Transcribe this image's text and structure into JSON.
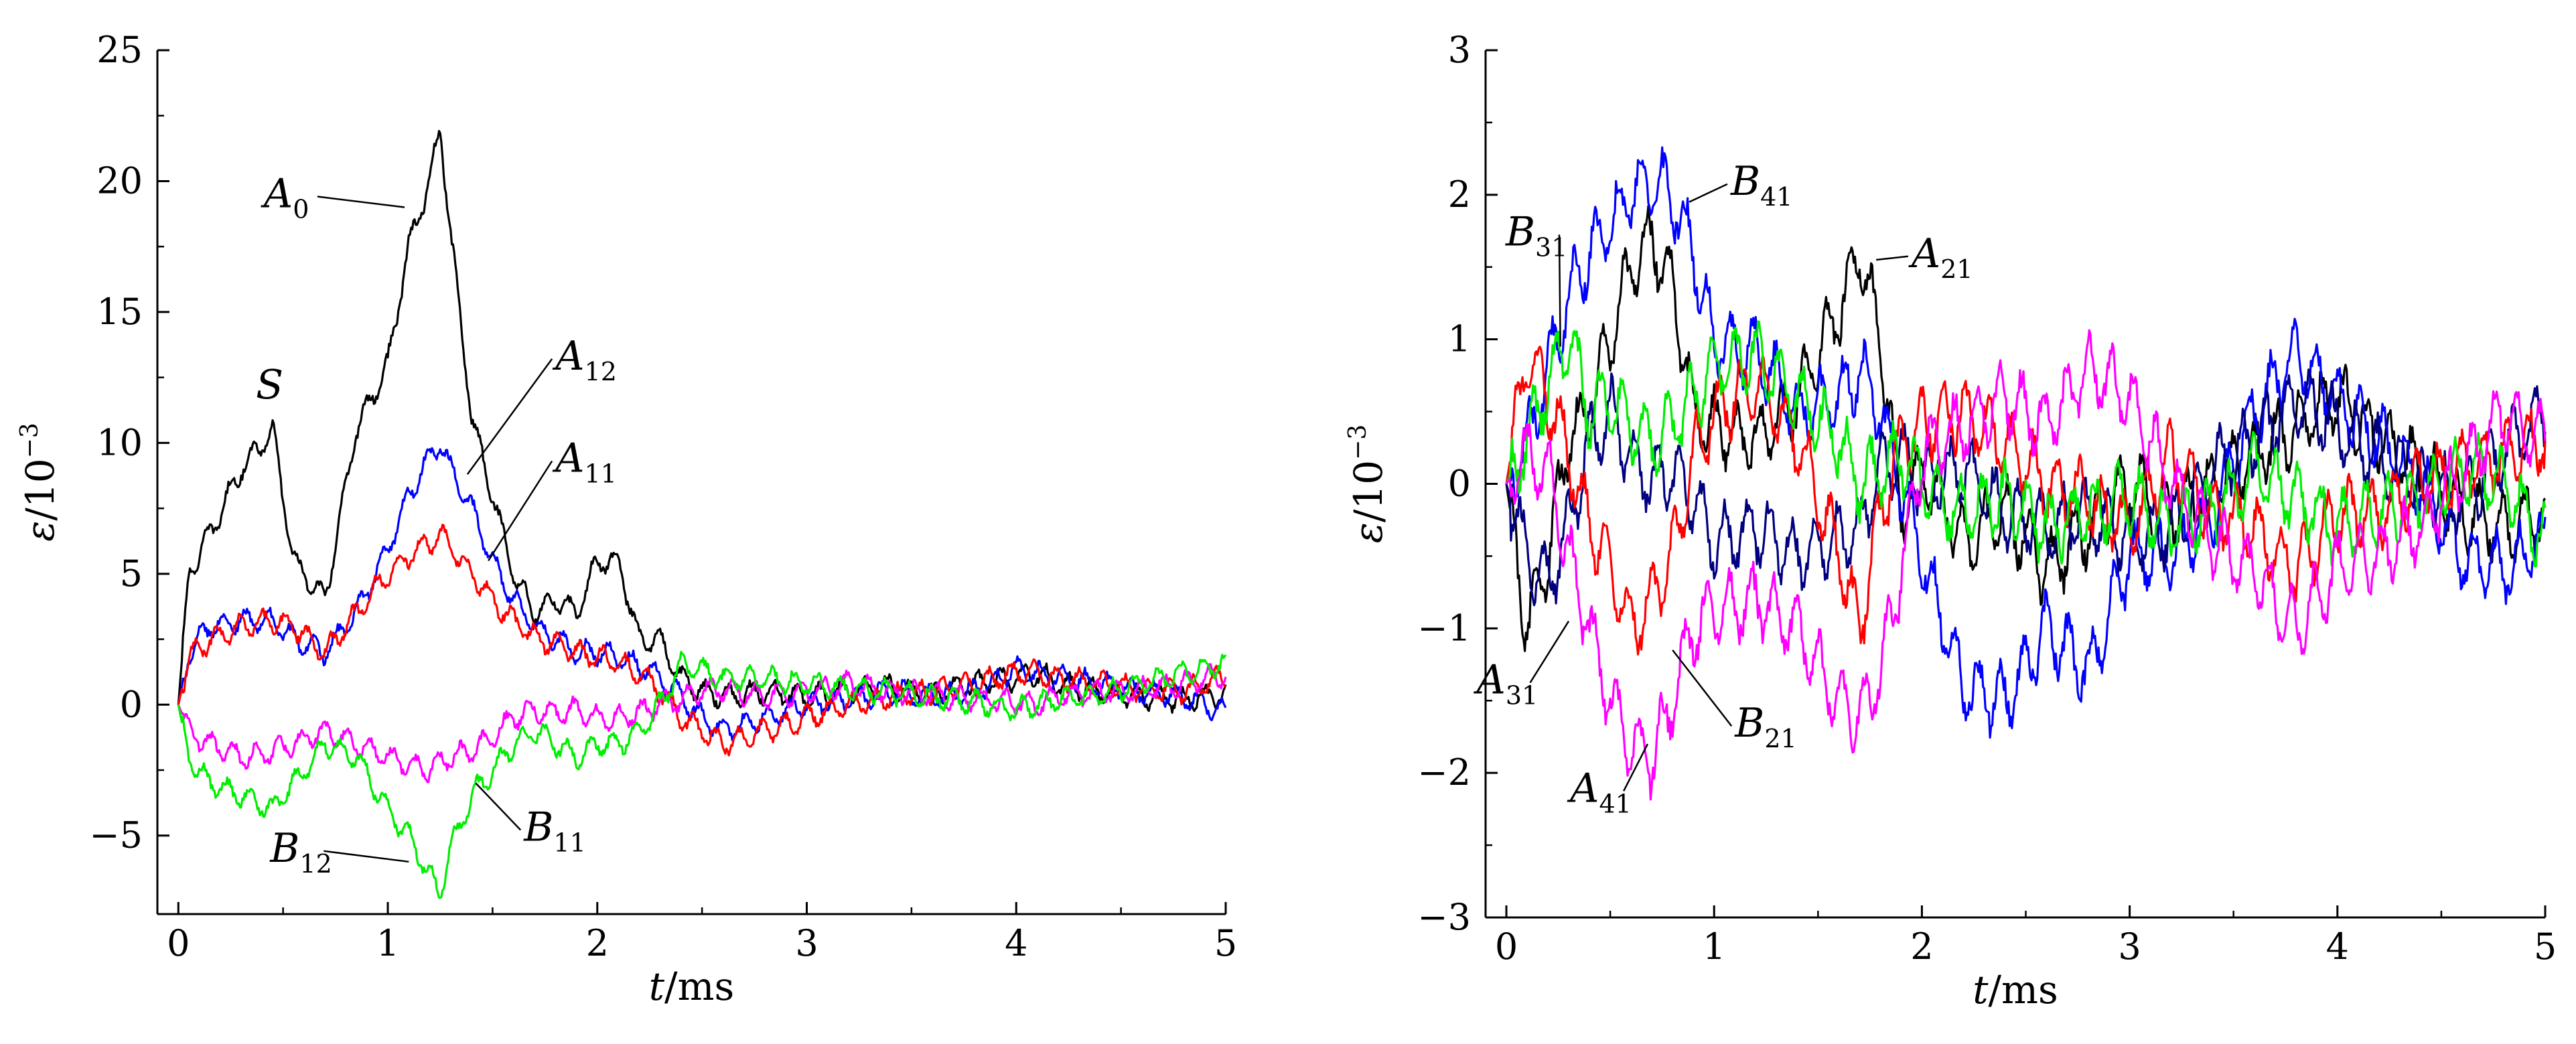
{
  "chart_data": [
    {
      "type": "line",
      "xlabel_var": "t",
      "xlabel_unit": "/ms",
      "ylabel_var": "ε",
      "ylabel_unit": "/10",
      "ylabel_exp": "−3",
      "xlim": [
        -0.1,
        5
      ],
      "ylim": [
        -8,
        25
      ],
      "xticks": [
        0,
        1,
        2,
        3,
        4,
        5
      ],
      "xtick_labels": [
        "0",
        "1",
        "2",
        "3",
        "4",
        "5"
      ],
      "yticks": [
        -5,
        0,
        5,
        10,
        15,
        20,
        25
      ],
      "ytick_labels": [
        "−5",
        "0",
        "5",
        "10",
        "15",
        "20",
        "25"
      ],
      "x": [
        0,
        0.05,
        0.15,
        0.3,
        0.45,
        0.55,
        0.7,
        0.85,
        1.0,
        1.1,
        1.2,
        1.25,
        1.3,
        1.4,
        1.5,
        1.6,
        1.7,
        1.8,
        1.9,
        2.0,
        2.1,
        2.2,
        2.3,
        2.4,
        2.5,
        2.6,
        2.8,
        3.0,
        3.2,
        3.4,
        3.6,
        3.8,
        4.0,
        4.1,
        4.2,
        4.4,
        4.6,
        4.8,
        5.0
      ],
      "series": [
        {
          "name": "A0",
          "color": "#000000",
          "values": [
            0,
            5,
            6.5,
            9,
            10.5,
            5.5,
            4,
            10.5,
            13,
            17.5,
            20,
            22,
            18,
            11,
            8,
            5,
            3.5,
            4,
            3.5,
            5.5,
            5.5,
            2.5,
            2.5,
            1,
            0.5,
            0.3,
            0.5,
            0.3,
            0.5,
            0.7,
            0.4,
            0.8,
            1.0,
            1.2,
            0.8,
            0.5,
            0.3,
            0.2,
            0.4
          ]
        },
        {
          "name": "A12",
          "color": "#0000ff",
          "values": [
            0,
            2,
            3,
            3.2,
            3.2,
            2.5,
            2,
            3.5,
            6,
            8,
            9.5,
            10,
            9,
            7.5,
            5.5,
            4,
            3,
            2.5,
            2,
            2,
            1.8,
            1.5,
            1.0,
            0.3,
            -0.5,
            -1.0,
            -0.5,
            0,
            0.2,
            0.5,
            0.3,
            0.5,
            1.3,
            1.2,
            1.0,
            0.8,
            0.5,
            0.3,
            -0.3
          ]
        },
        {
          "name": "A11",
          "color": "#ff0000",
          "values": [
            0,
            1.8,
            2.5,
            3,
            3.2,
            3,
            2,
            3.5,
            5,
            5.7,
            6.2,
            6.5,
            6,
            5,
            4,
            3.2,
            2.6,
            2.3,
            2,
            1.8,
            1.6,
            1.2,
            0.5,
            -0.5,
            -1.0,
            -1.5,
            -1.0,
            -0.5,
            0,
            0.3,
            0.5,
            0.8,
            1.2,
            1.2,
            1.0,
            0.8,
            0.6,
            0.5,
            1.1
          ]
        },
        {
          "name": "B11",
          "color": "#ff00ff",
          "values": [
            0,
            -1,
            -1.5,
            -2,
            -1.8,
            -1.5,
            -1.0,
            -1.5,
            -2.0,
            -2.3,
            -2.5,
            -2.2,
            -2.0,
            -1.8,
            -1.2,
            -0.5,
            -0.2,
            -0.3,
            -0.2,
            -0.5,
            -0.5,
            -0.3,
            0,
            0.2,
            0.5,
            0.6,
            0.3,
            0.5,
            0.8,
            0.5,
            0.4,
            0.2,
            0.1,
            0,
            0.3,
            0.5,
            0.6,
            0.8,
            1.2
          ]
        },
        {
          "name": "B12",
          "color": "#00ee00",
          "values": [
            0,
            -2,
            -3,
            -3.5,
            -4,
            -3,
            -1.5,
            -2,
            -4,
            -5,
            -6.5,
            -7.2,
            -5.5,
            -3.5,
            -2.5,
            -1.5,
            -1,
            -1.5,
            -2,
            -1.5,
            -1.5,
            -1,
            0,
            1.5,
            1.3,
            1.0,
            1.0,
            0.8,
            0.6,
            0.5,
            0.3,
            0.1,
            -0.2,
            0,
            0.2,
            0.4,
            0.8,
            1.2,
            1.6
          ]
        }
      ],
      "annotations": [
        {
          "text": "S",
          "sub": "",
          "x": 0.37,
          "y": 11.7
        },
        {
          "text": "A",
          "sub": "0",
          "x": 0.6,
          "y": 19.0,
          "ax": 1.08,
          "ay": 19.0
        },
        {
          "text": "A",
          "sub": "12",
          "x": 1.8,
          "y": 12.8,
          "ax": 1.38,
          "ay": 8.8
        },
        {
          "text": "A",
          "sub": "11",
          "x": 1.8,
          "y": 8.9,
          "ax": 1.48,
          "ay": 5.5
        },
        {
          "text": "B",
          "sub": "11",
          "x": 1.65,
          "y": -5.2,
          "ax": 1.42,
          "ay": -3.0
        },
        {
          "text": "B",
          "sub": "12",
          "x": 0.63,
          "y": -6.0,
          "ax": 1.1,
          "ay": -6.0
        }
      ]
    },
    {
      "type": "line",
      "xlabel_var": "t",
      "xlabel_unit": "/ms",
      "ylabel_var": "ε",
      "ylabel_unit": "/10",
      "ylabel_exp": "−3",
      "xlim": [
        -0.1,
        5
      ],
      "ylim": [
        -3,
        3
      ],
      "xticks": [
        0,
        1,
        2,
        3,
        4,
        5
      ],
      "xtick_labels": [
        "0",
        "1",
        "2",
        "3",
        "4",
        "5"
      ],
      "yticks": [
        -3,
        -2,
        -1,
        0,
        1,
        2,
        3
      ],
      "ytick_labels": [
        "−3",
        "−2",
        "−1",
        "0",
        "1",
        "2",
        "3"
      ],
      "x": [
        0,
        0.1,
        0.2,
        0.3,
        0.4,
        0.5,
        0.6,
        0.7,
        0.8,
        0.9,
        1.0,
        1.2,
        1.4,
        1.6,
        1.7,
        1.8,
        1.9,
        2.0,
        2.2,
        2.4,
        2.6,
        2.8,
        3.0,
        3.2,
        3.4,
        3.6,
        3.8,
        4.0,
        4.2,
        4.4,
        4.6,
        4.8,
        5.0
      ],
      "series": [
        {
          "name": "A21",
          "color": "#000000",
          "values": [
            0,
            -1.0,
            -0.5,
            0.3,
            0.5,
            1.0,
            1.5,
            1.7,
            1.4,
            0.5,
            0.4,
            0.3,
            0.6,
            1.2,
            1.6,
            1.0,
            -0.2,
            0.1,
            -0.4,
            -0.2,
            -0.6,
            -0.3,
            0,
            -0.2,
            0,
            0.2,
            0.4,
            0.6,
            0.3,
            0.1,
            -0.2,
            -0.3,
            -0.2
          ]
        },
        {
          "name": "B41",
          "color": "#0000ff",
          "values": [
            0,
            0.3,
            0.8,
            1.3,
            1.6,
            1.8,
            2.0,
            2.1,
            2.0,
            1.6,
            1.0,
            0.9,
            0.5,
            0.6,
            0.8,
            0.5,
            0,
            -0.5,
            -1.4,
            -1.5,
            -1.0,
            -1.3,
            -0.5,
            -0.5,
            -0.2,
            0.5,
            0.9,
            0.6,
            0.3,
            0,
            -0.5,
            -0.6,
            -0.4
          ]
        },
        {
          "name": "B31",
          "color": "#000080",
          "values": [
            0,
            -0.5,
            -0.7,
            -0.3,
            0.3,
            0.5,
            0.2,
            0,
            0.1,
            -0.1,
            -0.4,
            -0.3,
            -0.5,
            -0.4,
            -0.3,
            0.1,
            0.2,
            0,
            0.1,
            -0.2,
            -0.3,
            -0.2,
            -0.4,
            -0.3,
            0.1,
            0.3,
            0.6,
            0.4,
            0.2,
            0,
            -0.1,
            0.2,
            0.5
          ]
        },
        {
          "name": "B21",
          "color": "#ff0000",
          "values": [
            0,
            0.9,
            0.6,
            0.2,
            -0.3,
            -0.6,
            -1.0,
            -0.8,
            -0.5,
            0.2,
            0.5,
            0.7,
            0.3,
            -0.5,
            -1.0,
            -0.2,
            0.3,
            0.4,
            0.5,
            0.3,
            0.0,
            -0.1,
            -0.3,
            0.2,
            -0.2,
            -0.3,
            -0.6,
            -0.2,
            -0.2,
            0,
            0.1,
            0.2,
            0.3
          ]
        },
        {
          "name": "A31",
          "color": "#00ee00",
          "values": [
            0,
            0.3,
            0.7,
            1.0,
            0.5,
            0.6,
            0.4,
            0.3,
            0.4,
            0.6,
            0.8,
            0.9,
            0.6,
            0.3,
            0,
            0.1,
            0.2,
            0,
            -0.2,
            -0.1,
            -0.3,
            -0.2,
            -0.1,
            -0.3,
            -0.2,
            0.1,
            -0.1,
            -0.3,
            -0.2,
            -0.1,
            0.1,
            0,
            -0.4
          ]
        },
        {
          "name": "A41",
          "color": "#ff00ff",
          "values": [
            0,
            0.2,
            0.1,
            -0.5,
            -1.0,
            -1.5,
            -1.8,
            -1.9,
            -1.5,
            -1.0,
            -0.9,
            -0.8,
            -1.0,
            -1.5,
            -1.6,
            -1.3,
            -0.6,
            0.2,
            0.4,
            0.6,
            0.4,
            0.8,
            0.6,
            0.0,
            -0.4,
            -0.6,
            -1.0,
            -0.6,
            -0.5,
            -0.3,
            0.1,
            0.5,
            0.3
          ]
        }
      ],
      "annotations": [
        {
          "text": "B",
          "sub": "41",
          "x": 1.08,
          "y": 2.0,
          "ax": 0.88,
          "ay": 1.95
        },
        {
          "text": "B",
          "sub": "31",
          "x": 0.19,
          "y": 1.65,
          "ax": 0.26,
          "ay": 0.95
        },
        {
          "text": "A",
          "sub": "21",
          "x": 1.95,
          "y": 1.5,
          "ax": 1.78,
          "ay": 1.55
        },
        {
          "text": "A",
          "sub": "31",
          "x": 0.05,
          "y": -1.45,
          "ax": 0.3,
          "ay": -0.95
        },
        {
          "text": "B",
          "sub": "21",
          "x": 1.1,
          "y": -1.75,
          "ax": 0.8,
          "ay": -1.15
        },
        {
          "text": "A",
          "sub": "41",
          "x": 0.5,
          "y": -2.2,
          "ax": 0.68,
          "ay": -1.8
        }
      ]
    }
  ]
}
